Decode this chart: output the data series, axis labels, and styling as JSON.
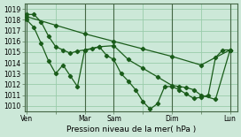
{
  "xlabel": "Pression niveau de la mer( hPa )",
  "bg_color": "#cce8d8",
  "grid_color": "#99ccaa",
  "line_color": "#1a5c1a",
  "ylim": [
    1009.5,
    1019.5
  ],
  "yticks": [
    1010,
    1011,
    1012,
    1013,
    1014,
    1015,
    1016,
    1017,
    1018,
    1019
  ],
  "day_labels": [
    "Ven",
    "",
    "Mar",
    "Sam",
    "",
    "Dim",
    "",
    "Lun"
  ],
  "day_positions": [
    0,
    4,
    8,
    12,
    16,
    20,
    24,
    28
  ],
  "vline_positions": [
    0,
    8,
    12,
    20,
    28
  ],
  "xlim": [
    -0.3,
    29.0
  ],
  "series1_x": [
    0,
    4,
    8,
    12,
    16,
    20,
    24,
    28
  ],
  "series1_y": [
    1018.3,
    1017.5,
    1016.7,
    1016.0,
    1015.3,
    1014.6,
    1013.8,
    1015.2
  ],
  "series2_x": [
    0,
    1,
    2,
    3,
    4,
    5,
    6,
    7,
    8,
    9,
    10,
    11,
    12,
    13,
    14,
    15,
    16,
    17,
    18,
    19,
    20,
    21,
    22,
    23,
    24,
    25,
    26,
    27,
    28
  ],
  "series2_y": [
    1018.0,
    1017.3,
    1015.8,
    1014.2,
    1013.0,
    1013.8,
    1012.8,
    1011.8,
    1015.2,
    1015.3,
    1015.5,
    1014.7,
    1014.3,
    1013.0,
    1012.3,
    1011.5,
    1010.4,
    1009.7,
    1010.2,
    1011.8,
    1011.8,
    1011.5,
    1011.1,
    1010.7,
    1010.8,
    1011.0,
    1014.5,
    1015.2,
    1015.2
  ],
  "series3_x": [
    0,
    1,
    2,
    3,
    4,
    5,
    6,
    7,
    8,
    10,
    12,
    14,
    16,
    18,
    20,
    21,
    22,
    23,
    24,
    26,
    28
  ],
  "series3_y": [
    1018.5,
    1018.5,
    1017.8,
    1016.5,
    1015.5,
    1015.2,
    1014.9,
    1015.1,
    1015.2,
    1015.5,
    1015.6,
    1014.3,
    1013.5,
    1012.7,
    1011.9,
    1011.8,
    1011.7,
    1011.5,
    1011.0,
    1010.6,
    1015.2
  ]
}
